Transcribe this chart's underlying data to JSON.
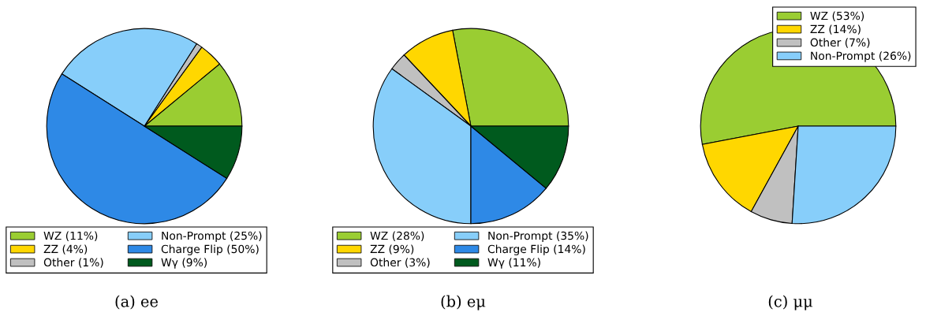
{
  "chart_data": [
    {
      "type": "pie",
      "title": "(a) ee",
      "legend": "bottom",
      "categories": [
        "WZ (11%)",
        "ZZ (4%)",
        "Other (1%)",
        "Non-Prompt (25%)",
        "Charge Flip (50%)",
        "Wγ (9%)"
      ],
      "values": [
        11,
        4,
        1,
        25,
        50,
        9
      ],
      "colors": [
        "#9acd32",
        "#ffd700",
        "#c0c0c0",
        "#87cefa",
        "#2e89e6",
        "#005a1e"
      ]
    },
    {
      "type": "pie",
      "title": "(b) eμ",
      "legend": "bottom",
      "categories": [
        "WZ (28%)",
        "ZZ (9%)",
        "Other (3%)",
        "Non-Prompt (35%)",
        "Charge Flip (14%)",
        "Wγ (11%)"
      ],
      "values": [
        28,
        9,
        3,
        35,
        14,
        11
      ],
      "colors": [
        "#9acd32",
        "#ffd700",
        "#c0c0c0",
        "#87cefa",
        "#2e89e6",
        "#005a1e"
      ]
    },
    {
      "type": "pie",
      "title": "(c) μμ",
      "legend": "top right",
      "categories": [
        "WZ (53%)",
        "ZZ (14%)",
        "Other (7%)",
        "Non-Prompt (26%)"
      ],
      "values": [
        53,
        14,
        7,
        26
      ],
      "colors": [
        "#9acd32",
        "#ffd700",
        "#c0c0c0",
        "#87cefa"
      ]
    }
  ]
}
